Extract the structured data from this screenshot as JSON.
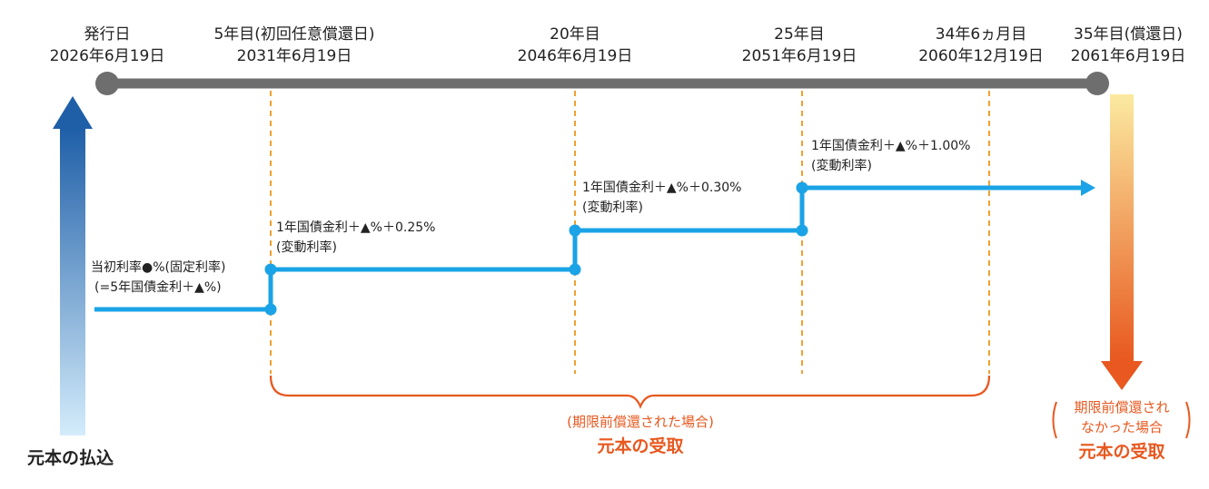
{
  "timeline": {
    "points": [
      {
        "label": "発行日",
        "date": "2026年6月19日"
      },
      {
        "label": "5年目(初回任意償還日)",
        "date": "2031年6月19日"
      },
      {
        "label": "20年目",
        "date": "2046年6月19日"
      },
      {
        "label": "25年目",
        "date": "2051年6月19日"
      },
      {
        "label": "34年6ヵ月目",
        "date": "2060年12月19日"
      },
      {
        "label": "35年目(償還日)",
        "date": "2061年6月19日"
      }
    ]
  },
  "rates": [
    {
      "line1": "当初利率●%(固定利率)",
      "line2": "(=5年国債金利＋▲%)"
    },
    {
      "line1": "1年国債金利＋▲%＋0.25%",
      "line2": "(変動利率)"
    },
    {
      "line1": "1年国債金利＋▲%＋0.30%",
      "line2": "(変動利率)"
    },
    {
      "line1": "1年国債金利＋▲%＋1.00%",
      "line2": "(変動利率)"
    }
  ],
  "principal_payment": "元本の払込",
  "early_redemption": {
    "condition": "(期限前償還された場合)",
    "label": "元本の受取"
  },
  "maturity_redemption": {
    "condition_line1": "期限前償還され",
    "condition_line2": "なかった場合",
    "label": "元本の受取"
  },
  "colors": {
    "timeline": "#6e6e6e",
    "rate_line": "#1aa3e6",
    "guide": "#f0a030",
    "brace": "#e8581f",
    "arrow_blue": "#1f5fa8",
    "arrow_orange": "#e8581f"
  }
}
